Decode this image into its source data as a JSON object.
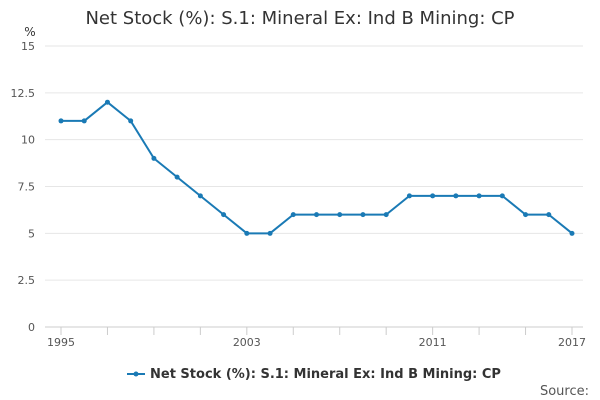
{
  "chart_data": {
    "type": "line",
    "title": "Net Stock (%): S.1: Mineral Ex: Ind B Mining: CP",
    "ylabel": "%",
    "xlabel": "",
    "source_label": "Source:",
    "x_range": [
      1995,
      2017
    ],
    "ylim": [
      0,
      15
    ],
    "y_ticks": [
      0,
      2.5,
      5,
      7.5,
      10,
      12.5,
      15
    ],
    "y_tick_labels": [
      "0",
      "2.5",
      "5",
      "7.5",
      "10",
      "12.5",
      "15"
    ],
    "x_tick_labels": [
      {
        "value": 1995,
        "label": "1995"
      },
      {
        "value": 2003,
        "label": "2003"
      },
      {
        "value": 2011,
        "label": "2011"
      },
      {
        "value": 2017,
        "label": "2017"
      }
    ],
    "x_minor_ticks": [
      1995,
      1997,
      1999,
      2001,
      2003,
      2005,
      2007,
      2009,
      2011,
      2013,
      2015,
      2017
    ],
    "grid": "horizontal",
    "legend_position": "bottom",
    "series": [
      {
        "name": "Net Stock (%): S.1: Mineral Ex: Ind B Mining: CP",
        "color": "#1a7ab5",
        "x": [
          1995,
          1996,
          1997,
          1998,
          1999,
          2000,
          2001,
          2002,
          2003,
          2004,
          2005,
          2006,
          2007,
          2008,
          2009,
          2010,
          2011,
          2012,
          2013,
          2014,
          2015,
          2016,
          2017
        ],
        "values": [
          11,
          11,
          12,
          11,
          9,
          8,
          7,
          6,
          5,
          5,
          6,
          6,
          6,
          6,
          6,
          7,
          7,
          7,
          7,
          7,
          6,
          6,
          5
        ]
      }
    ]
  }
}
